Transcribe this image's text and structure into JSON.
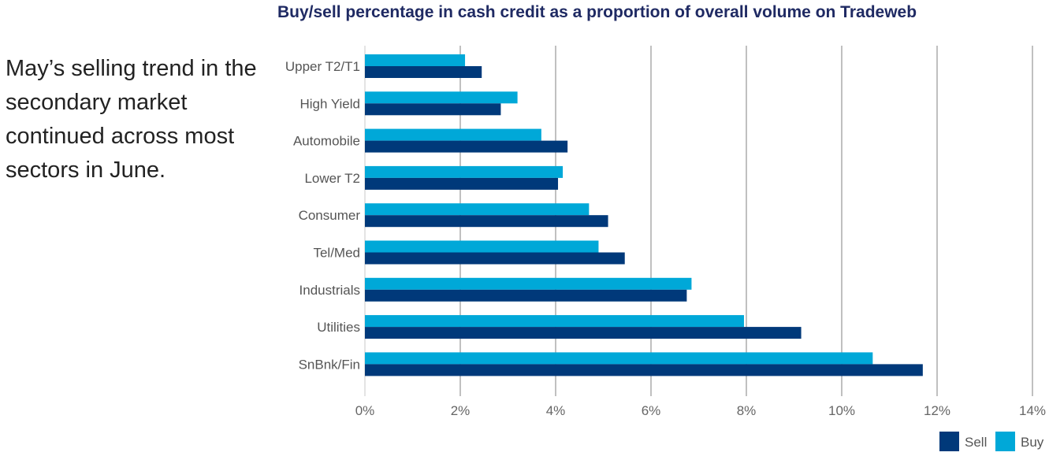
{
  "description": "May’s selling trend in the secondary market continued across most sectors in June.",
  "chart_data": {
    "type": "bar",
    "orientation": "horizontal",
    "title": "Buy/sell percentage in cash credit as a proportion of overall volume on Tradeweb",
    "categories": [
      "Upper T2/T1",
      "High Yield",
      "Automobile",
      "Lower T2",
      "Consumer",
      "Tel/Med",
      "Industrials",
      "Utilities",
      "SnBnk/Fin"
    ],
    "series": [
      {
        "name": "Buy",
        "color": "#00a8d8",
        "values": [
          2.1,
          3.2,
          3.7,
          4.15,
          4.7,
          4.9,
          6.85,
          7.95,
          10.65
        ]
      },
      {
        "name": "Sell",
        "color": "#00397a",
        "values": [
          2.45,
          2.85,
          4.25,
          4.05,
          5.1,
          5.45,
          6.75,
          9.15,
          11.7
        ]
      }
    ],
    "xlim": [
      0,
      14
    ],
    "xticks": [
      "0%",
      "2%",
      "4%",
      "6%",
      "8%",
      "10%",
      "12%",
      "14%"
    ],
    "grid": true,
    "legend": {
      "position": "bottom-right",
      "items": [
        "Sell",
        "Buy"
      ]
    }
  }
}
